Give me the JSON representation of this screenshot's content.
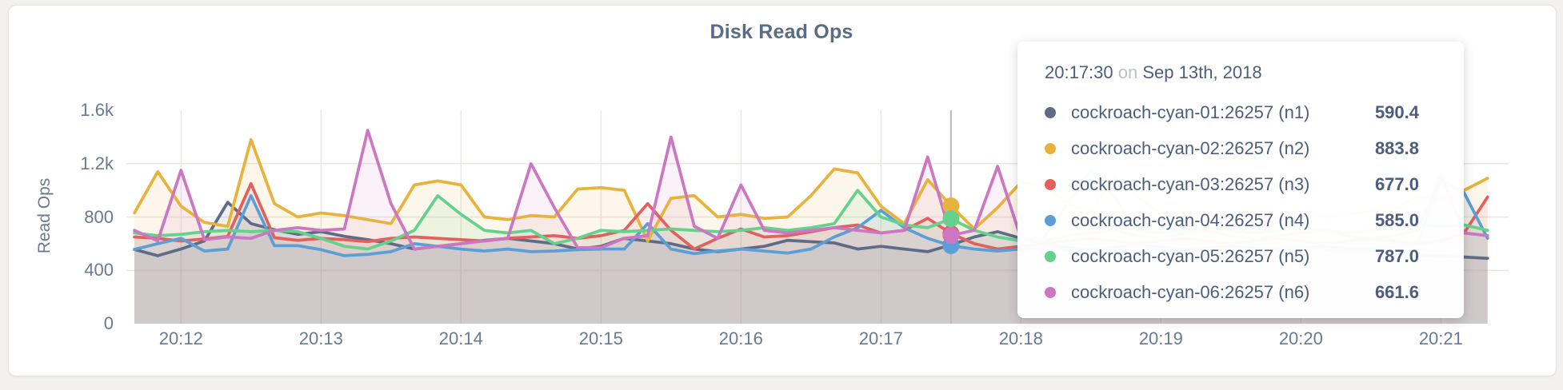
{
  "chart_data": {
    "type": "line",
    "title": "Disk Read Ops",
    "ylabel": "Read Ops",
    "xlabel": "",
    "x_start_time": "20:11:40",
    "x_step_seconds": 10,
    "x_tick_labels": [
      "20:12",
      "20:13",
      "20:14",
      "20:15",
      "20:16",
      "20:17",
      "20:18",
      "20:19",
      "20:20",
      "20:21"
    ],
    "y_ticks": [
      {
        "label": "0",
        "value": 0
      },
      {
        "label": "400",
        "value": 400
      },
      {
        "label": "800",
        "value": 800
      },
      {
        "label": "1.2k",
        "value": 1200
      },
      {
        "label": "1.6k",
        "value": 1600
      }
    ],
    "ylim": [
      0,
      1600
    ],
    "grid": true,
    "legend_position": "tooltip",
    "hover": {
      "index": 35,
      "time_label": "20:17:30"
    },
    "series": [
      {
        "name": "cockroach-cyan-01:26257 (n1)",
        "color": "#5f6c87",
        "values": [
          557,
          510,
          560,
          620,
          910,
          750,
          705,
          670,
          690,
          655,
          630,
          600,
          560,
          580,
          600,
          625,
          640,
          620,
          600,
          560,
          580,
          640,
          620,
          600,
          560,
          540,
          560,
          580,
          625,
          615,
          605,
          560,
          580,
          560,
          540,
          590.4,
          650,
          690,
          640,
          600,
          570,
          550,
          570,
          590,
          570,
          550,
          565,
          580,
          565,
          550,
          565,
          580,
          565,
          550,
          530,
          515,
          505,
          500,
          490
        ]
      },
      {
        "name": "cockroach-cyan-02:26257 (n2)",
        "color": "#e8b33c",
        "values": [
          830,
          1140,
          880,
          760,
          730,
          1380,
          900,
          800,
          830,
          810,
          780,
          750,
          1040,
          1070,
          1040,
          800,
          780,
          810,
          800,
          1010,
          1020,
          1000,
          620,
          940,
          960,
          800,
          820,
          790,
          800,
          960,
          1160,
          1130,
          880,
          750,
          1080,
          883.8,
          710,
          870,
          1060,
          1040,
          900,
          850,
          1100,
          950,
          820,
          840,
          800,
          820,
          840,
          810,
          830,
          800,
          820,
          840,
          860,
          950,
          930,
          1000,
          1090
        ]
      },
      {
        "name": "cockroach-cyan-03:26257 (n3)",
        "color": "#e0615e",
        "values": [
          650,
          640,
          620,
          635,
          655,
          1050,
          645,
          625,
          640,
          630,
          615,
          640,
          650,
          640,
          630,
          620,
          640,
          650,
          660,
          640,
          660,
          700,
          900,
          700,
          560,
          640,
          710,
          650,
          660,
          690,
          720,
          740,
          680,
          700,
          790,
          677,
          600,
          560,
          580,
          600,
          620,
          640,
          620,
          600,
          620,
          640,
          620,
          600,
          620,
          640,
          620,
          600,
          620,
          640,
          620,
          600,
          620,
          680,
          950
        ]
      },
      {
        "name": "cockroach-cyan-04:26257 (n4)",
        "color": "#5c9fd6",
        "values": [
          557,
          600,
          640,
          545,
          560,
          960,
          585,
          585,
          555,
          510,
          520,
          540,
          600,
          580,
          560,
          545,
          560,
          540,
          545,
          555,
          560,
          560,
          750,
          560,
          525,
          545,
          560,
          545,
          530,
          560,
          650,
          720,
          850,
          720,
          640,
          585,
          560,
          545,
          560,
          570,
          555,
          545,
          560,
          575,
          560,
          545,
          555,
          565,
          550,
          560,
          575,
          560,
          545,
          560,
          575,
          600,
          1080,
          980,
          640
        ]
      },
      {
        "name": "cockroach-cyan-05:26257 (n5)",
        "color": "#66d08d",
        "values": [
          680,
          660,
          670,
          690,
          700,
          690,
          700,
          690,
          640,
          580,
          560,
          620,
          700,
          960,
          820,
          700,
          680,
          700,
          600,
          640,
          700,
          690,
          700,
          710,
          700,
          690,
          700,
          720,
          700,
          720,
          750,
          1000,
          800,
          740,
          720,
          787,
          700,
          650,
          620,
          650,
          900,
          1150,
          950,
          700,
          680,
          700,
          720,
          700,
          680,
          700,
          720,
          700,
          680,
          700,
          720,
          740,
          730,
          740,
          700
        ]
      },
      {
        "name": "cockroach-cyan-06:26257 (n6)",
        "color": "#cc77c2",
        "values": [
          700,
          620,
          1150,
          630,
          650,
          640,
          700,
          720,
          700,
          710,
          1450,
          900,
          560,
          580,
          600,
          620,
          640,
          1200,
          870,
          570,
          570,
          640,
          660,
          1400,
          730,
          640,
          1040,
          700,
          680,
          700,
          720,
          700,
          680,
          700,
          1250,
          661.6,
          700,
          1180,
          640,
          620,
          660,
          680,
          700,
          660,
          640,
          680,
          700,
          660,
          640,
          660,
          680,
          700,
          660,
          640,
          660,
          700,
          1120,
          680,
          660
        ]
      }
    ]
  },
  "tooltip": {
    "time": "20:17:30",
    "on_word": "on",
    "date": "Sep 13th, 2018",
    "rows": [
      {
        "label": "cockroach-cyan-01:26257 (n1)",
        "value": "590.4",
        "color": "#5f6c87"
      },
      {
        "label": "cockroach-cyan-02:26257 (n2)",
        "value": "883.8",
        "color": "#e8b33c"
      },
      {
        "label": "cockroach-cyan-03:26257 (n3)",
        "value": "677.0",
        "color": "#e0615e"
      },
      {
        "label": "cockroach-cyan-04:26257 (n4)",
        "value": "585.0",
        "color": "#5c9fd6"
      },
      {
        "label": "cockroach-cyan-05:26257 (n5)",
        "value": "787.0",
        "color": "#66d08d"
      },
      {
        "label": "cockroach-cyan-06:26257 (n6)",
        "value": "661.6",
        "color": "#cc77c2"
      }
    ]
  },
  "style_colors": {
    "grid": "#e9e8e5",
    "hover_line": "#b9b9b9",
    "tick_text": "#6a7890",
    "title_text": "#5a6b85"
  }
}
